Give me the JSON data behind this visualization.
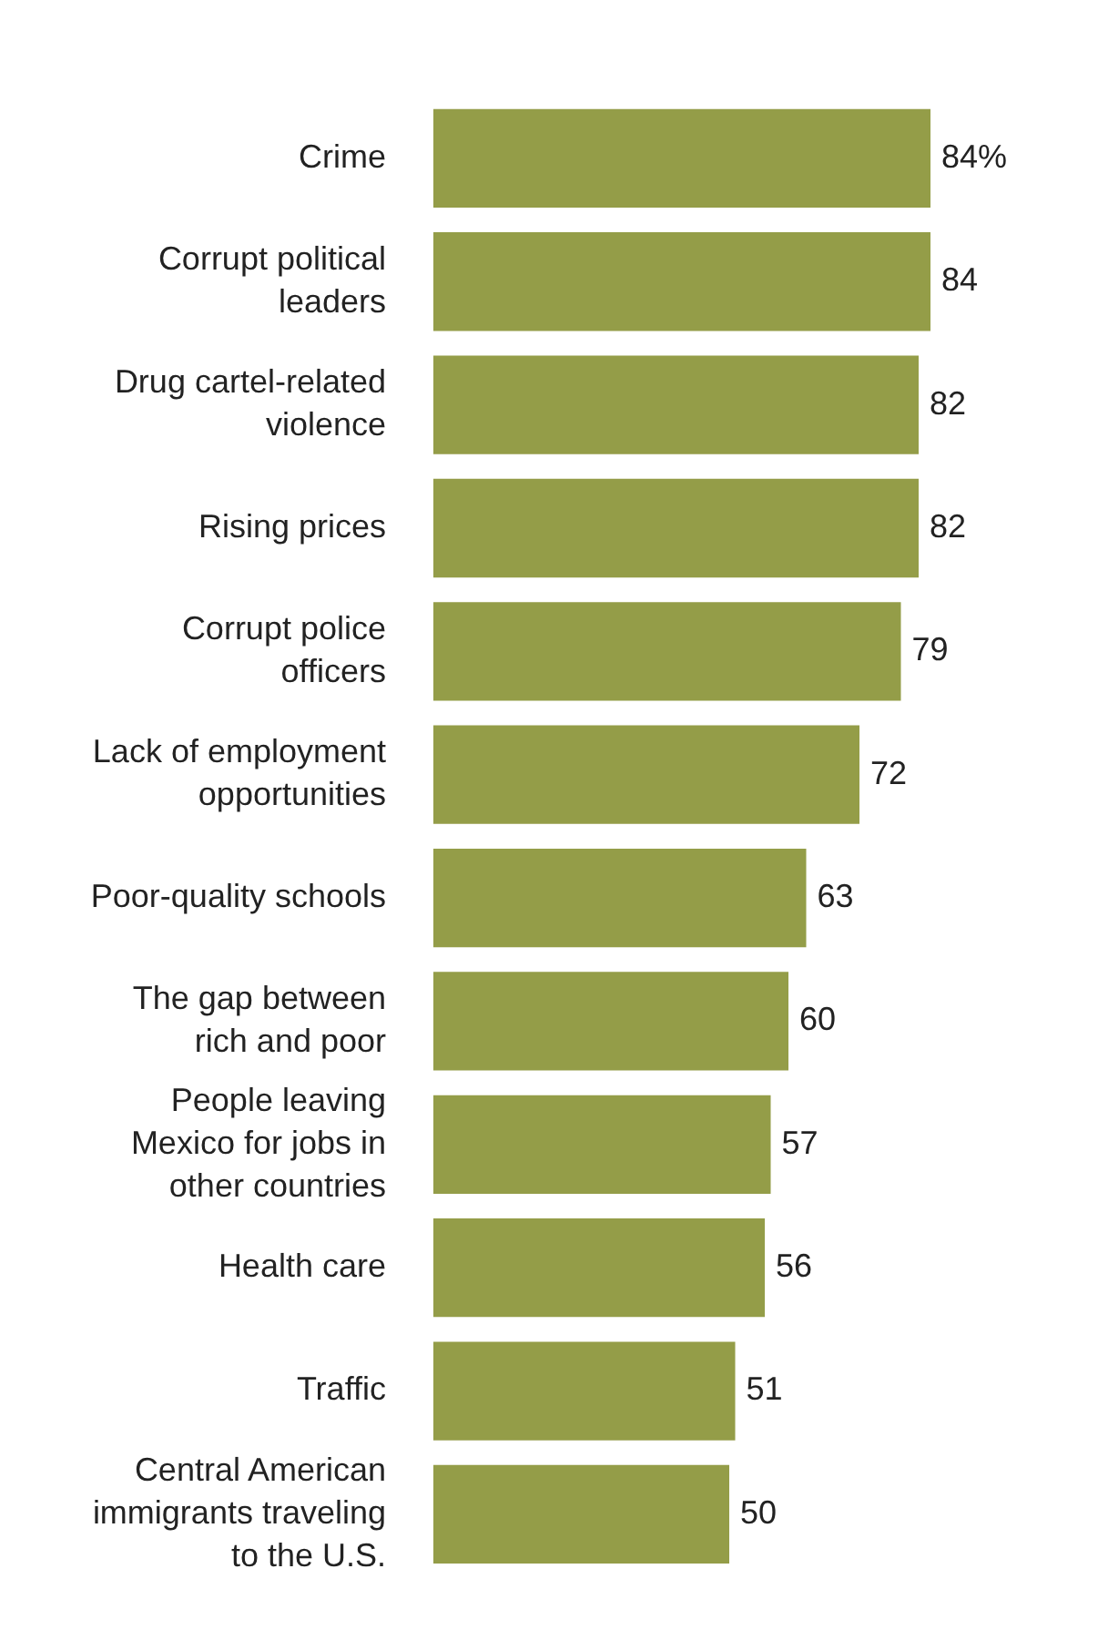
{
  "chart_data": {
    "type": "bar",
    "orientation": "horizontal",
    "categories": [
      "Crime",
      "Corrupt political leaders",
      "Drug cartel-related violence",
      "Rising prices",
      "Corrupt police officers",
      "Lack of employment opportunities",
      "Poor-quality schools",
      "The gap between rich and poor",
      "People leaving Mexico for jobs in other countries",
      "Health care",
      "Traffic",
      "Central American immigrants traveling to the U.S."
    ],
    "values": [
      84,
      84,
      82,
      82,
      79,
      72,
      63,
      60,
      57,
      56,
      51,
      50
    ],
    "value_labels": [
      "84%",
      "84",
      "82",
      "82",
      "79",
      "72",
      "63",
      "60",
      "57",
      "56",
      "51",
      "50"
    ],
    "color": "#949d48",
    "tick_labels": "y"
  }
}
